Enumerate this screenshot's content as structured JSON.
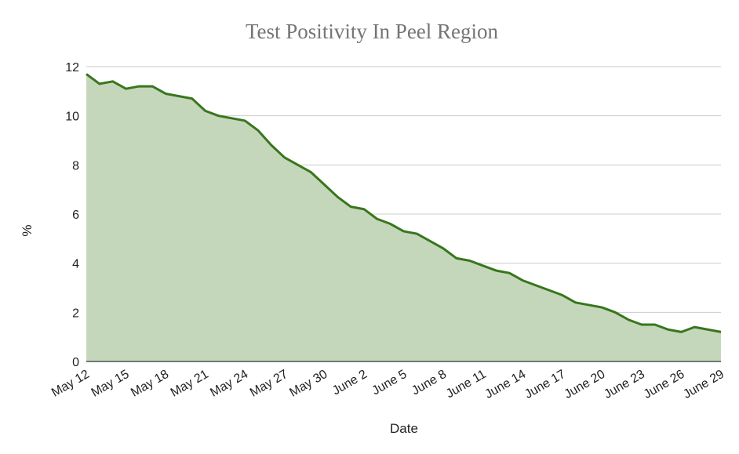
{
  "chart_data": {
    "type": "area",
    "title": "Test Positivity In Peel Region",
    "xlabel": "Date",
    "ylabel": "%",
    "ylim": [
      0,
      12
    ],
    "yticks": [
      0,
      2,
      4,
      6,
      8,
      10,
      12
    ],
    "x_tick_labels": [
      "May 12",
      "May 15",
      "May 18",
      "May 21",
      "May 24",
      "May 27",
      "May 30",
      "June 2",
      "June 5",
      "June 8",
      "June 11",
      "June 14",
      "June 17",
      "June 20",
      "June 23",
      "June 26",
      "June 29"
    ],
    "grid": true,
    "legend": "none",
    "series": [
      {
        "name": "Test Positivity",
        "color": "#38761d",
        "fill": "#c4d7bb",
        "x": [
          "May 12",
          "May 13",
          "May 14",
          "May 15",
          "May 16",
          "May 17",
          "May 18",
          "May 19",
          "May 20",
          "May 21",
          "May 22",
          "May 23",
          "May 24",
          "May 25",
          "May 26",
          "May 27",
          "May 28",
          "May 29",
          "May 30",
          "May 31",
          "June 1",
          "June 2",
          "June 3",
          "June 4",
          "June 5",
          "June 6",
          "June 7",
          "June 8",
          "June 9",
          "June 10",
          "June 11",
          "June 12",
          "June 13",
          "June 14",
          "June 15",
          "June 16",
          "June 17",
          "June 18",
          "June 19",
          "June 20",
          "June 21",
          "June 22",
          "June 23",
          "June 24",
          "June 25",
          "June 26",
          "June 27",
          "June 28",
          "June 29"
        ],
        "values": [
          11.7,
          11.3,
          11.4,
          11.1,
          11.2,
          11.2,
          10.9,
          10.8,
          10.7,
          10.2,
          10.0,
          9.9,
          9.8,
          9.4,
          8.8,
          8.3,
          8.0,
          7.7,
          7.2,
          6.7,
          6.3,
          6.2,
          5.8,
          5.6,
          5.3,
          5.2,
          4.9,
          4.6,
          4.2,
          4.1,
          3.9,
          3.7,
          3.6,
          3.3,
          3.1,
          2.9,
          2.7,
          2.4,
          2.3,
          2.2,
          2.0,
          1.7,
          1.5,
          1.5,
          1.3,
          1.2,
          1.4,
          1.3,
          1.2
        ]
      }
    ]
  }
}
